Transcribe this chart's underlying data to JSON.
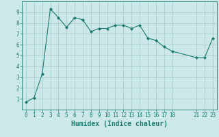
{
  "x": [
    0,
    1,
    2,
    3,
    4,
    5,
    6,
    7,
    8,
    9,
    10,
    11,
    12,
    13,
    14,
    15,
    16,
    17,
    18,
    21,
    22,
    23
  ],
  "y": [
    0.7,
    1.1,
    3.3,
    9.3,
    8.5,
    7.6,
    8.5,
    8.3,
    7.2,
    7.5,
    7.5,
    7.8,
    7.8,
    7.5,
    7.8,
    6.6,
    6.4,
    5.8,
    5.4,
    4.8,
    4.8,
    6.6
  ],
  "line_color": "#1a7a6e",
  "marker": "D",
  "markersize": 2.0,
  "bg_color": "#cce8e8",
  "grid_color": "#aacece",
  "xlabel": "Humidex (Indice chaleur)",
  "xlim": [
    -0.5,
    23.5
  ],
  "ylim": [
    0,
    10
  ],
  "xticks": [
    0,
    1,
    2,
    3,
    4,
    5,
    6,
    7,
    8,
    9,
    10,
    11,
    12,
    13,
    14,
    15,
    16,
    17,
    18,
    21,
    22,
    23
  ],
  "yticks": [
    1,
    2,
    3,
    4,
    5,
    6,
    7,
    8,
    9
  ],
  "tick_color": "#1a7a6e",
  "label_color": "#1a7a6e",
  "axis_color": "#1a7a6e",
  "tick_fontsize": 5.5,
  "xlabel_fontsize": 7.0,
  "linewidth": 0.8
}
